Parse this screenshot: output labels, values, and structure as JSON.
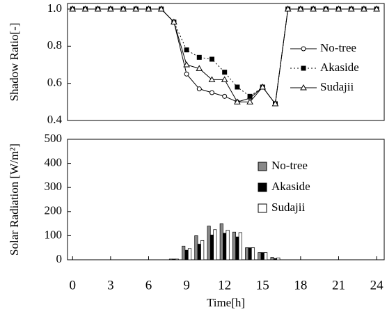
{
  "chart_data": [
    {
      "type": "line",
      "ylabel": "Shadow Ratio[-]",
      "x": [
        0,
        1,
        2,
        3,
        4,
        5,
        6,
        7,
        8,
        9,
        10,
        11,
        12,
        13,
        14,
        15,
        16,
        17,
        18,
        19,
        20,
        21,
        22,
        23,
        24
      ],
      "series": [
        {
          "name": "No-tree",
          "color": "#000000",
          "marker": "circle",
          "line_style": "solid",
          "values": [
            1,
            1,
            1,
            1,
            1,
            1,
            1,
            1,
            0.93,
            0.65,
            0.57,
            0.55,
            0.53,
            0.5,
            0.52,
            0.58,
            0.49,
            1,
            1,
            1,
            1,
            1,
            1,
            1,
            1
          ]
        },
        {
          "name": "Akaside",
          "color": "#000000",
          "marker": "square",
          "line_style": "dotted",
          "values": [
            1,
            1,
            1,
            1,
            1,
            1,
            1,
            1,
            0.93,
            0.78,
            0.74,
            0.73,
            0.66,
            0.58,
            0.53,
            0.58,
            0.49,
            1,
            1,
            1,
            1,
            1,
            1,
            1,
            1
          ]
        },
        {
          "name": "Sudajii",
          "color": "#000000",
          "marker": "triangle",
          "line_style": "solid",
          "values": [
            1,
            1,
            1,
            1,
            1,
            1,
            1,
            1,
            0.93,
            0.7,
            0.68,
            0.62,
            0.62,
            0.5,
            0.5,
            0.58,
            0.49,
            1,
            1,
            1,
            1,
            1,
            1,
            1,
            1
          ]
        }
      ],
      "xlim": [
        -0.4,
        24.6
      ],
      "ylim": [
        0.4,
        1.03
      ],
      "yticks": [
        0.4,
        0.6,
        0.8,
        {
          "value": 1,
          "label": "1.0"
        }
      ]
    },
    {
      "type": "bar",
      "ylabel": "Solar Radiation [W/m²]",
      "xlabel": "Time[h]",
      "x": [
        8,
        9,
        10,
        11,
        12,
        13,
        14,
        15,
        16
      ],
      "series": [
        {
          "name": "No-tree",
          "color": "#888888",
          "values": [
            3,
            57,
            100,
            140,
            150,
            115,
            50,
            30,
            10
          ]
        },
        {
          "name": "Akaside",
          "color": "#000000",
          "values": [
            3,
            40,
            65,
            103,
            110,
            95,
            50,
            30,
            5
          ]
        },
        {
          "name": "Sudajii",
          "color": "#ffffff",
          "values": [
            3,
            47,
            80,
            125,
            123,
            113,
            50,
            30,
            8
          ]
        }
      ],
      "xlim": [
        -0.4,
        24.6
      ],
      "xticks": [
        0,
        3,
        6,
        9,
        12,
        15,
        18,
        21,
        24
      ],
      "ylim": [
        0,
        500
      ],
      "yticks": [
        0,
        100,
        200,
        300,
        400,
        500
      ]
    }
  ]
}
